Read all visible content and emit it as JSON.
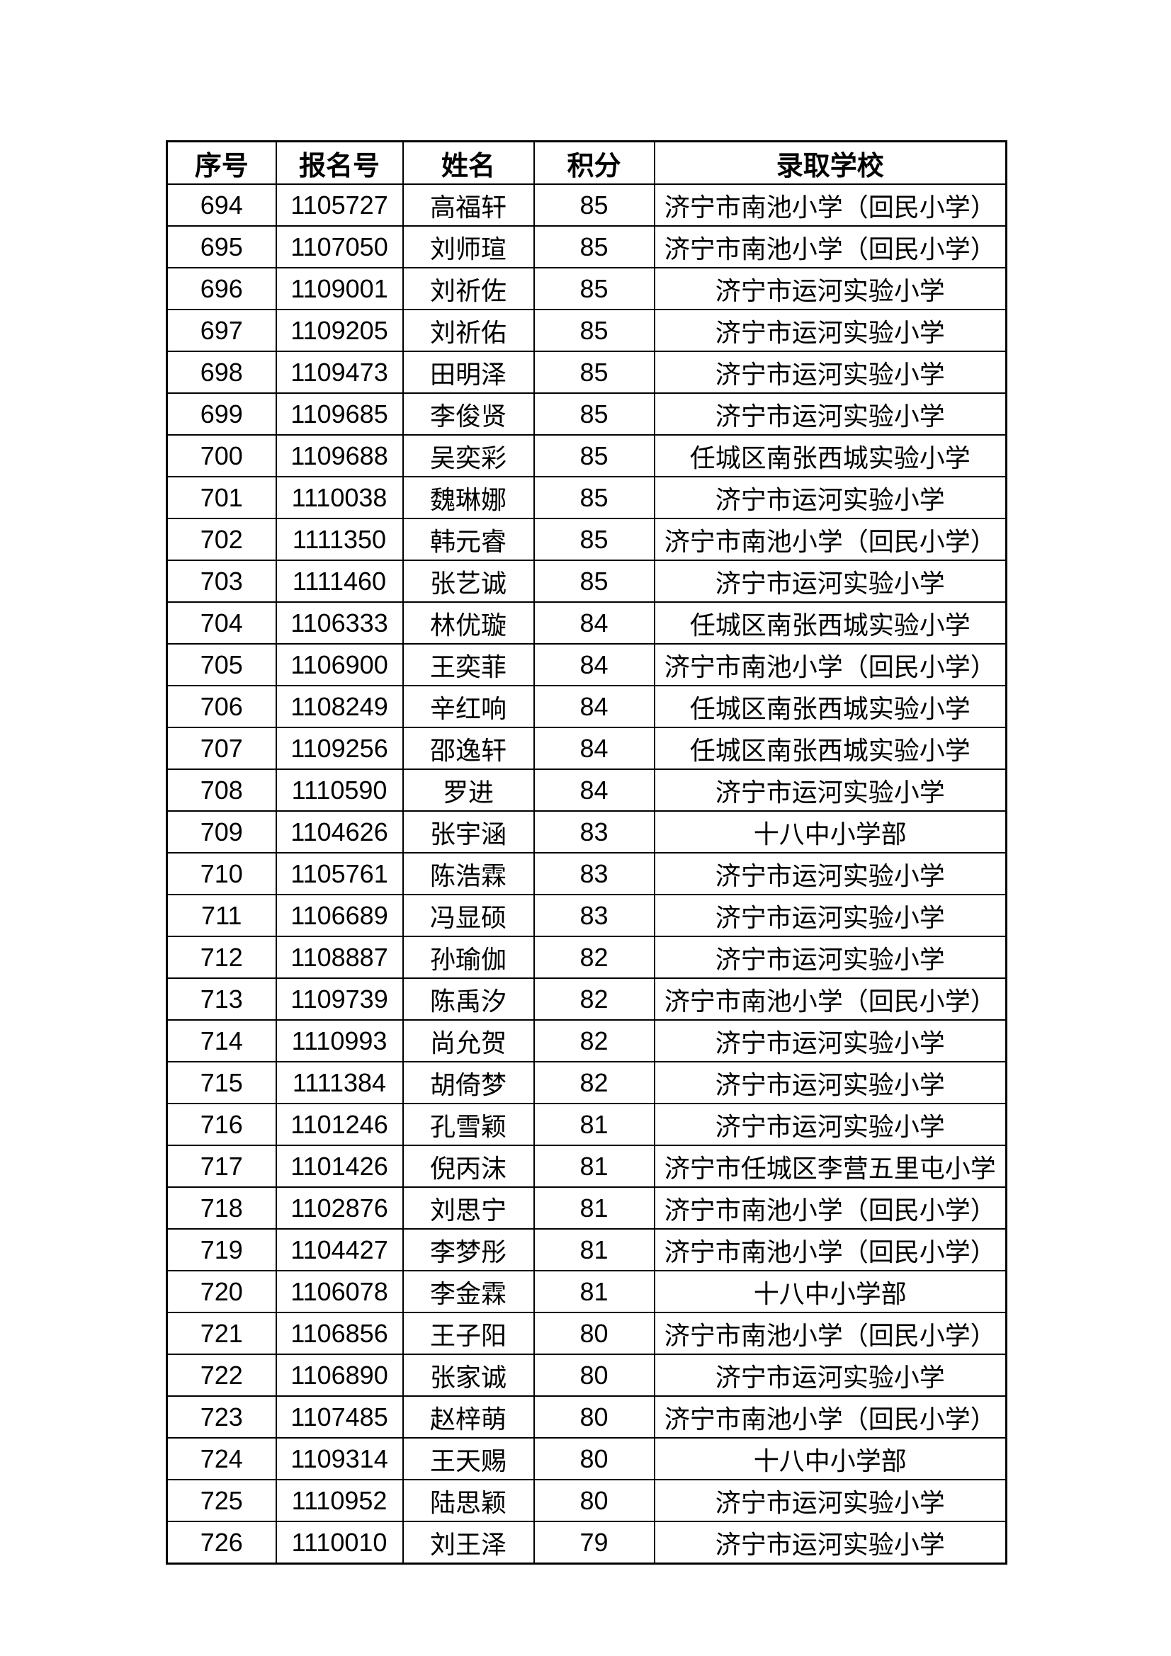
{
  "page": {
    "background": "#ffffff",
    "text_color": "#000000",
    "border_color": "#000000"
  },
  "table": {
    "columns": [
      {
        "key": "index",
        "label": "序号"
      },
      {
        "key": "reg_no",
        "label": "报名号"
      },
      {
        "key": "name",
        "label": "姓名"
      },
      {
        "key": "score",
        "label": "积分"
      },
      {
        "key": "school",
        "label": "录取学校"
      }
    ],
    "rows": [
      [
        "694",
        "1105727",
        "高福轩",
        "85",
        "济宁市南池小学（回民小学）"
      ],
      [
        "695",
        "1107050",
        "刘师瑄",
        "85",
        "济宁市南池小学（回民小学）"
      ],
      [
        "696",
        "1109001",
        "刘祈佐",
        "85",
        "济宁市运河实验小学"
      ],
      [
        "697",
        "1109205",
        "刘祈佑",
        "85",
        "济宁市运河实验小学"
      ],
      [
        "698",
        "1109473",
        "田明泽",
        "85",
        "济宁市运河实验小学"
      ],
      [
        "699",
        "1109685",
        "李俊贤",
        "85",
        "济宁市运河实验小学"
      ],
      [
        "700",
        "1109688",
        "吴奕彩",
        "85",
        "任城区南张西城实验小学"
      ],
      [
        "701",
        "1110038",
        "魏琳娜",
        "85",
        "济宁市运河实验小学"
      ],
      [
        "702",
        "1111350",
        "韩元睿",
        "85",
        "济宁市南池小学（回民小学）"
      ],
      [
        "703",
        "1111460",
        "张艺诚",
        "85",
        "济宁市运河实验小学"
      ],
      [
        "704",
        "1106333",
        "林优璇",
        "84",
        "任城区南张西城实验小学"
      ],
      [
        "705",
        "1106900",
        "王奕菲",
        "84",
        "济宁市南池小学（回民小学）"
      ],
      [
        "706",
        "1108249",
        "辛红响",
        "84",
        "任城区南张西城实验小学"
      ],
      [
        "707",
        "1109256",
        "邵逸轩",
        "84",
        "任城区南张西城实验小学"
      ],
      [
        "708",
        "1110590",
        "罗进",
        "84",
        "济宁市运河实验小学"
      ],
      [
        "709",
        "1104626",
        "张宇涵",
        "83",
        "十八中小学部"
      ],
      [
        "710",
        "1105761",
        "陈浩霖",
        "83",
        "济宁市运河实验小学"
      ],
      [
        "711",
        "1106689",
        "冯显硕",
        "83",
        "济宁市运河实验小学"
      ],
      [
        "712",
        "1108887",
        "孙瑜伽",
        "82",
        "济宁市运河实验小学"
      ],
      [
        "713",
        "1109739",
        "陈禹汐",
        "82",
        "济宁市南池小学（回民小学）"
      ],
      [
        "714",
        "1110993",
        "尚允贺",
        "82",
        "济宁市运河实验小学"
      ],
      [
        "715",
        "1111384",
        "胡倚梦",
        "82",
        "济宁市运河实验小学"
      ],
      [
        "716",
        "1101246",
        "孔雪颖",
        "81",
        "济宁市运河实验小学"
      ],
      [
        "717",
        "1101426",
        "倪丙沫",
        "81",
        "济宁市任城区李营五里屯小学"
      ],
      [
        "718",
        "1102876",
        "刘思宁",
        "81",
        "济宁市南池小学（回民小学）"
      ],
      [
        "719",
        "1104427",
        "李梦彤",
        "81",
        "济宁市南池小学（回民小学）"
      ],
      [
        "720",
        "1106078",
        "李金霖",
        "81",
        "十八中小学部"
      ],
      [
        "721",
        "1106856",
        "王子阳",
        "80",
        "济宁市南池小学（回民小学）"
      ],
      [
        "722",
        "1106890",
        "张家诚",
        "80",
        "济宁市运河实验小学"
      ],
      [
        "723",
        "1107485",
        "赵梓萌",
        "80",
        "济宁市南池小学（回民小学）"
      ],
      [
        "724",
        "1109314",
        "王天赐",
        "80",
        "十八中小学部"
      ],
      [
        "725",
        "1110952",
        "陆思颖",
        "80",
        "济宁市运河实验小学"
      ],
      [
        "726",
        "1110010",
        "刘王泽",
        "79",
        "济宁市运河实验小学"
      ]
    ]
  }
}
